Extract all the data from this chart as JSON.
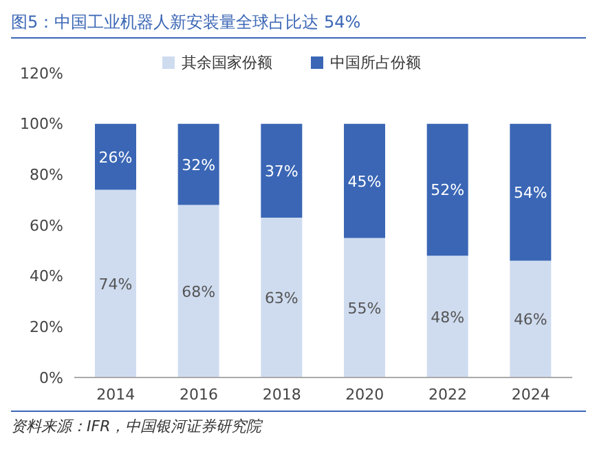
{
  "chart_data": {
    "type": "bar",
    "title": "图5：中国工业机器人新安装量全球占比达 54%",
    "annotations": [
      "资料来源：IFR，中国银河证券研究院"
    ],
    "categories": [
      "2014",
      "2016",
      "2018",
      "2020",
      "2022",
      "2024"
    ],
    "series": [
      {
        "name": "其余国家份额",
        "color": "#cfdcf0",
        "values": [
          74,
          68,
          63,
          55,
          48,
          46
        ],
        "value_labels": [
          "74%",
          "68%",
          "63%",
          "55%",
          "48%",
          "46%"
        ]
      },
      {
        "name": "中国所占份额",
        "color": "#3a66b5",
        "values": [
          26,
          32,
          37,
          45,
          52,
          54
        ],
        "value_labels": [
          "26%",
          "32%",
          "37%",
          "45%",
          "52%",
          "54%"
        ]
      }
    ],
    "stacked": true,
    "ylim": [
      0,
      120
    ],
    "yticks": [
      {
        "value": 0,
        "label": "0%"
      },
      {
        "value": 20,
        "label": "20%"
      },
      {
        "value": 40,
        "label": "40%"
      },
      {
        "value": 60,
        "label": "60%"
      },
      {
        "value": 80,
        "label": "80%"
      },
      {
        "value": 100,
        "label": "100%"
      },
      {
        "value": 120,
        "label": "120%"
      }
    ],
    "legend": "top",
    "grid": false
  }
}
